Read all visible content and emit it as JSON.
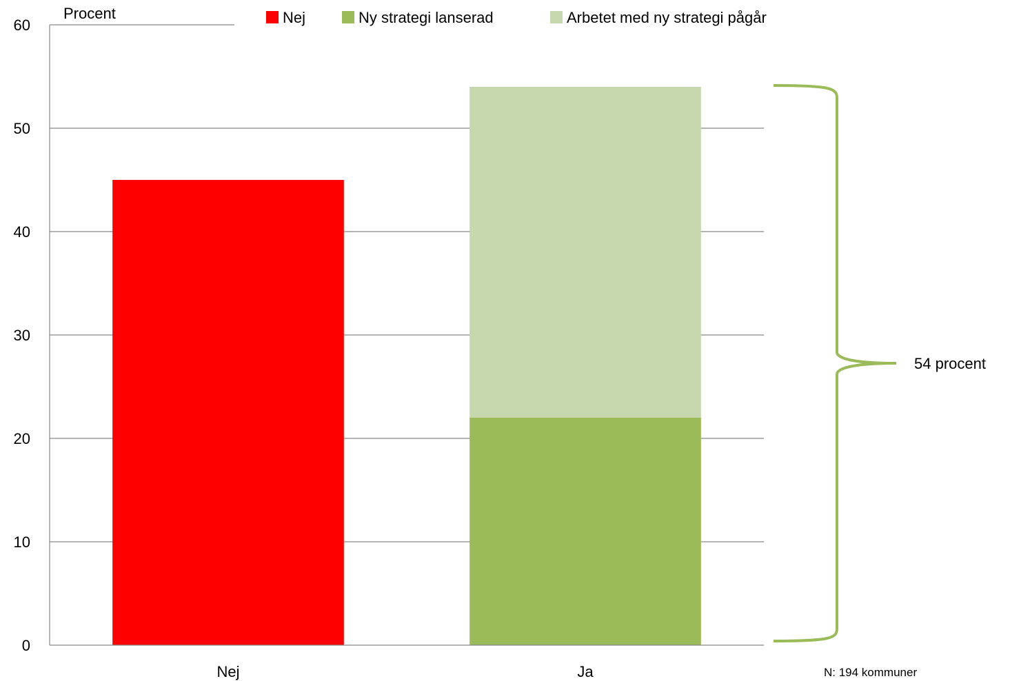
{
  "chart_data": {
    "type": "bar",
    "stacked": true,
    "ylabel": "Procent",
    "xlabel": "",
    "ylim": [
      0,
      60
    ],
    "yticks": [
      0,
      10,
      20,
      30,
      40,
      50,
      60
    ],
    "grid": true,
    "legend_position": "top",
    "categories": [
      "Nej",
      "Ja"
    ],
    "series": [
      {
        "name": "Nej",
        "color": "#FF0000",
        "values": [
          45,
          0
        ]
      },
      {
        "name": "Ny strategi lanserad",
        "color": "#9BBB59",
        "values": [
          0,
          22
        ]
      },
      {
        "name": "Arbetet med ny strategi pågår",
        "color": "#C6D7AD",
        "values": [
          0,
          32
        ]
      }
    ],
    "annotation": {
      "text": "54 procent",
      "brace_color": "#9BBB59",
      "from": 0,
      "to": 54,
      "category": "Ja"
    },
    "note": "N: 194 kommuner"
  }
}
